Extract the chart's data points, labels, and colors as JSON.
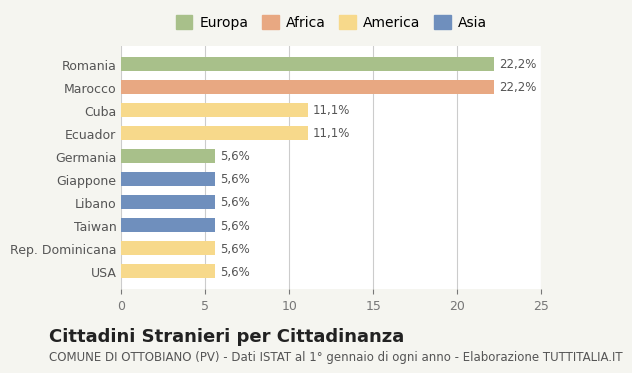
{
  "categories": [
    "Romania",
    "Marocco",
    "Cuba",
    "Ecuador",
    "Germania",
    "Giappone",
    "Libano",
    "Taiwan",
    "Rep. Dominicana",
    "USA"
  ],
  "values": [
    22.2,
    22.2,
    11.1,
    11.1,
    5.6,
    5.6,
    5.6,
    5.6,
    5.6,
    5.6
  ],
  "labels": [
    "22,2%",
    "22,2%",
    "11,1%",
    "11,1%",
    "5,6%",
    "5,6%",
    "5,6%",
    "5,6%",
    "5,6%",
    "5,6%"
  ],
  "bar_colors": [
    "#a8c08a",
    "#e8a882",
    "#f7d98b",
    "#f7d98b",
    "#a8c08a",
    "#6f8fbd",
    "#6f8fbd",
    "#6f8fbd",
    "#f7d98b",
    "#f7d98b"
  ],
  "continent_colors": {
    "Europa": "#a8c08a",
    "Africa": "#e8a882",
    "America": "#f7d98b",
    "Asia": "#6f8fbd"
  },
  "legend_labels": [
    "Europa",
    "Africa",
    "America",
    "Asia"
  ],
  "xlim": [
    0,
    25
  ],
  "xticks": [
    0,
    5,
    10,
    15,
    20,
    25
  ],
  "title": "Cittadini Stranieri per Cittadinanza",
  "subtitle": "COMUNE DI OTTOBIANO (PV) - Dati ISTAT al 1° gennaio di ogni anno - Elaborazione TUTTITALIA.IT",
  "background_color": "#f5f5f0",
  "bar_background": "#ffffff",
  "title_fontsize": 13,
  "subtitle_fontsize": 8.5,
  "label_fontsize": 8.5,
  "tick_fontsize": 9,
  "legend_fontsize": 10
}
